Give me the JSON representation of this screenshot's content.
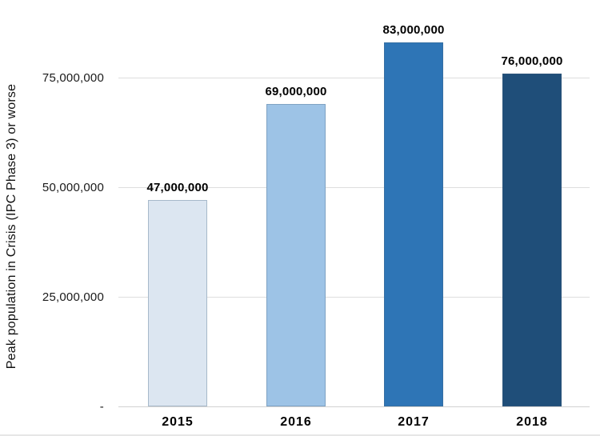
{
  "chart_data": {
    "type": "bar",
    "title": "",
    "xlabel": "",
    "ylabel": "Peak population in Crisis (IPC Phase 3) or worse",
    "categories": [
      "2015",
      "2016",
      "2017",
      "2018"
    ],
    "values": [
      47000000,
      69000000,
      83000000,
      76000000
    ],
    "value_labels": [
      "47,000,000",
      "69,000,000",
      "83,000,000",
      "76,000,000"
    ],
    "ylim": [
      0,
      93000000
    ],
    "yticks": [
      {
        "value": 0,
        "label": "-"
      },
      {
        "value": 25000000,
        "label": "25,000,000"
      },
      {
        "value": 50000000,
        "label": "50,000,000"
      },
      {
        "value": 75000000,
        "label": "75,000,000"
      }
    ],
    "grid": true,
    "legend": "none",
    "bar_colors": [
      "#DCE6F1",
      "#9DC3E6",
      "#2E75B6",
      "#1F4E79"
    ],
    "colors": {
      "gridline": "#DEDEDE",
      "axis_line": "#D2D2D2",
      "bar_border": "rgba(70,100,130,0.35)",
      "label_text": "#000000",
      "tick_text": "#1a1a1a"
    }
  }
}
